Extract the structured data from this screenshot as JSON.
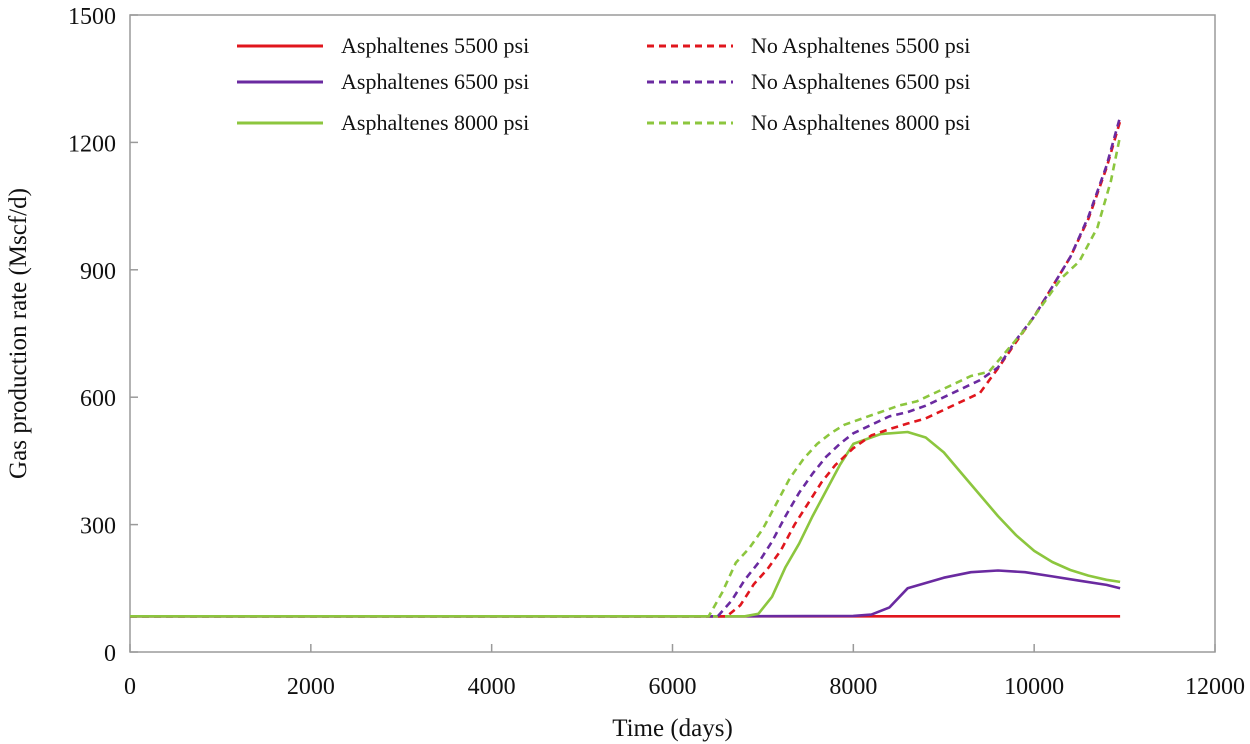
{
  "chart_data": {
    "type": "line",
    "title": "",
    "xlabel": "Time (days)",
    "ylabel": "Gas production rate (Mscf/d)",
    "xlim": [
      0,
      12000
    ],
    "ylim": [
      0,
      1500
    ],
    "xticks": [
      0,
      2000,
      4000,
      6000,
      8000,
      10000,
      12000
    ],
    "yticks": [
      0,
      300,
      600,
      900,
      1200,
      1500
    ],
    "grid": false,
    "legend_position": "top",
    "series": [
      {
        "name": "Asphaltenes 5500 psi",
        "color": "#e0161d",
        "dash": "solid",
        "points": [
          [
            0,
            84
          ],
          [
            6000,
            84
          ],
          [
            8000,
            84
          ],
          [
            10000,
            84
          ],
          [
            10950,
            84
          ]
        ]
      },
      {
        "name": "Asphaltenes 6500 psi",
        "color": "#6a2aa0",
        "dash": "solid",
        "points": [
          [
            0,
            84
          ],
          [
            6800,
            84
          ],
          [
            8000,
            85
          ],
          [
            8200,
            88
          ],
          [
            8400,
            105
          ],
          [
            8600,
            150
          ],
          [
            9000,
            175
          ],
          [
            9300,
            188
          ],
          [
            9600,
            192
          ],
          [
            9900,
            188
          ],
          [
            10200,
            178
          ],
          [
            10500,
            168
          ],
          [
            10800,
            158
          ],
          [
            10950,
            150
          ]
        ]
      },
      {
        "name": "Asphaltenes 8000 psi",
        "color": "#8cc63e",
        "dash": "solid",
        "points": [
          [
            0,
            84
          ],
          [
            6800,
            84
          ],
          [
            6950,
            90
          ],
          [
            7100,
            130
          ],
          [
            7250,
            200
          ],
          [
            7400,
            255
          ],
          [
            7550,
            320
          ],
          [
            7700,
            380
          ],
          [
            7850,
            440
          ],
          [
            8000,
            490
          ],
          [
            8300,
            513
          ],
          [
            8600,
            518
          ],
          [
            8800,
            505
          ],
          [
            9000,
            470
          ],
          [
            9200,
            420
          ],
          [
            9400,
            370
          ],
          [
            9600,
            320
          ],
          [
            9800,
            275
          ],
          [
            10000,
            238
          ],
          [
            10200,
            212
          ],
          [
            10400,
            193
          ],
          [
            10600,
            180
          ],
          [
            10800,
            170
          ],
          [
            10950,
            165
          ]
        ]
      },
      {
        "name": "No Asphaltenes 5500 psi",
        "color": "#e0161d",
        "dash": "dashed",
        "points": [
          [
            0,
            84
          ],
          [
            6600,
            84
          ],
          [
            6750,
            110
          ],
          [
            6900,
            160
          ],
          [
            7050,
            195
          ],
          [
            7200,
            240
          ],
          [
            7350,
            300
          ],
          [
            7500,
            350
          ],
          [
            7650,
            400
          ],
          [
            7800,
            440
          ],
          [
            8000,
            480
          ],
          [
            8200,
            510
          ],
          [
            8400,
            525
          ],
          [
            8600,
            538
          ],
          [
            8800,
            550
          ],
          [
            9000,
            570
          ],
          [
            9200,
            590
          ],
          [
            9400,
            610
          ],
          [
            9600,
            668
          ],
          [
            9800,
            730
          ],
          [
            10000,
            790
          ],
          [
            10200,
            860
          ],
          [
            10400,
            930
          ],
          [
            10600,
            1020
          ],
          [
            10800,
            1140
          ],
          [
            10950,
            1250
          ]
        ]
      },
      {
        "name": "No Asphaltenes 6500 psi",
        "color": "#6a2aa0",
        "dash": "dashed",
        "points": [
          [
            0,
            84
          ],
          [
            6500,
            84
          ],
          [
            6650,
            120
          ],
          [
            6800,
            170
          ],
          [
            6950,
            210
          ],
          [
            7100,
            260
          ],
          [
            7250,
            320
          ],
          [
            7400,
            375
          ],
          [
            7550,
            420
          ],
          [
            7700,
            460
          ],
          [
            7850,
            490
          ],
          [
            8000,
            515
          ],
          [
            8200,
            535
          ],
          [
            8400,
            555
          ],
          [
            8600,
            565
          ],
          [
            8800,
            580
          ],
          [
            9000,
            600
          ],
          [
            9200,
            620
          ],
          [
            9400,
            640
          ],
          [
            9600,
            670
          ],
          [
            9800,
            735
          ],
          [
            10000,
            790
          ],
          [
            10200,
            860
          ],
          [
            10400,
            930
          ],
          [
            10600,
            1025
          ],
          [
            10800,
            1145
          ],
          [
            10950,
            1260
          ]
        ]
      },
      {
        "name": "No Asphaltenes 8000 psi",
        "color": "#8cc63e",
        "dash": "dashed",
        "points": [
          [
            0,
            84
          ],
          [
            6400,
            84
          ],
          [
            6550,
            140
          ],
          [
            6700,
            210
          ],
          [
            6850,
            245
          ],
          [
            7000,
            290
          ],
          [
            7150,
            350
          ],
          [
            7300,
            410
          ],
          [
            7450,
            455
          ],
          [
            7600,
            490
          ],
          [
            7750,
            515
          ],
          [
            7900,
            535
          ],
          [
            8100,
            550
          ],
          [
            8300,
            565
          ],
          [
            8500,
            580
          ],
          [
            8700,
            590
          ],
          [
            8900,
            610
          ],
          [
            9100,
            630
          ],
          [
            9300,
            650
          ],
          [
            9500,
            660
          ],
          [
            9700,
            710
          ],
          [
            9900,
            760
          ],
          [
            10100,
            820
          ],
          [
            10300,
            880
          ],
          [
            10500,
            920
          ],
          [
            10700,
            1000
          ],
          [
            10850,
            1110
          ],
          [
            10950,
            1215
          ]
        ]
      }
    ]
  }
}
